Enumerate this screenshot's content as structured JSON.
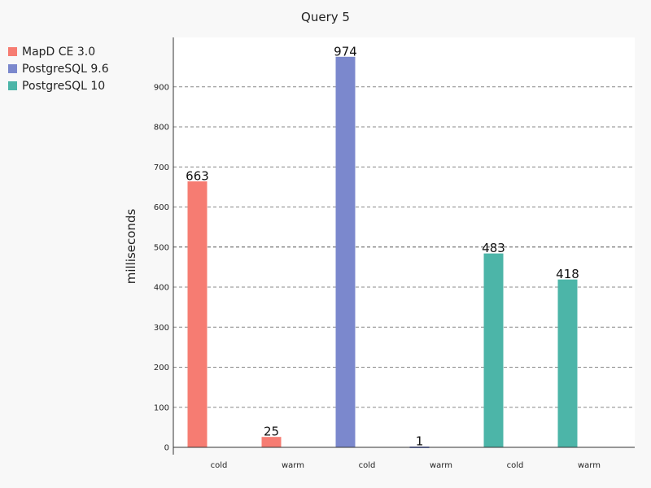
{
  "chart_data": {
    "type": "bar",
    "title": "Query 5",
    "xlabel": "",
    "ylabel": "milliseconds",
    "ylim": [
      0,
      1000
    ],
    "yticks": [
      0,
      100,
      200,
      300,
      400,
      500,
      600,
      700,
      800,
      900
    ],
    "categories": [
      "cold",
      "warm",
      "cold",
      "warm",
      "cold",
      "warm"
    ],
    "series": [
      {
        "name": "MapD CE 3.0",
        "color": "#f67c72",
        "values": [
          663,
          25,
          null,
          null,
          null,
          null
        ]
      },
      {
        "name": "PostgreSQL 9.6",
        "color": "#7b88cd",
        "values": [
          null,
          null,
          974,
          1,
          null,
          null
        ]
      },
      {
        "name": "PostgreSQL 10",
        "color": "#4cb5a8",
        "values": [
          null,
          null,
          null,
          null,
          483,
          418
        ]
      }
    ],
    "grid": true,
    "legend_position": "top-left"
  }
}
